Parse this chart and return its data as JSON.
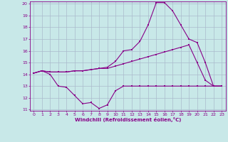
{
  "xlabel": "Windchill (Refroidissement éolien,°C)",
  "bg_color": "#c8e8e8",
  "line_color": "#880088",
  "grid_color": "#aabbcc",
  "xmin": 0,
  "xmax": 23,
  "ymin": 11,
  "ymax": 20,
  "yticks": [
    11,
    12,
    13,
    14,
    15,
    16,
    17,
    18,
    19,
    20
  ],
  "xticks": [
    0,
    1,
    2,
    3,
    4,
    5,
    6,
    7,
    8,
    9,
    10,
    11,
    12,
    13,
    14,
    15,
    16,
    17,
    18,
    19,
    20,
    21,
    22,
    23
  ],
  "line1_x": [
    0,
    1,
    2,
    3,
    4,
    5,
    6,
    7,
    8,
    9,
    10,
    11,
    12,
    13,
    14,
    15,
    16,
    17,
    18,
    19,
    20,
    21,
    22,
    23
  ],
  "line1_y": [
    14.1,
    14.3,
    14.0,
    13.0,
    12.9,
    12.2,
    11.5,
    11.6,
    11.1,
    11.4,
    12.6,
    13.0,
    13.0,
    13.0,
    13.0,
    13.0,
    13.0,
    13.0,
    13.0,
    13.0,
    13.0,
    13.0,
    13.0,
    13.0
  ],
  "line2_x": [
    0,
    1,
    2,
    3,
    4,
    5,
    6,
    7,
    8,
    9,
    10,
    11,
    12,
    13,
    14,
    15,
    16,
    17,
    18,
    19,
    20,
    21,
    22,
    23
  ],
  "line2_y": [
    14.1,
    14.3,
    14.2,
    14.2,
    14.2,
    14.3,
    14.3,
    14.4,
    14.5,
    14.5,
    14.7,
    14.9,
    15.1,
    15.3,
    15.5,
    15.7,
    15.9,
    16.1,
    16.3,
    16.5,
    15.0,
    13.5,
    13.0,
    13.0
  ],
  "line3_x": [
    0,
    1,
    2,
    3,
    4,
    5,
    6,
    7,
    8,
    9,
    10,
    11,
    12,
    13,
    14,
    15,
    16,
    17,
    18,
    19,
    20,
    21,
    22,
    23
  ],
  "line3_y": [
    14.1,
    14.3,
    14.2,
    14.2,
    14.2,
    14.3,
    14.3,
    14.4,
    14.5,
    14.6,
    15.1,
    16.0,
    16.1,
    16.8,
    18.2,
    20.1,
    20.1,
    19.4,
    18.2,
    17.0,
    16.7,
    15.0,
    13.0,
    13.0
  ]
}
